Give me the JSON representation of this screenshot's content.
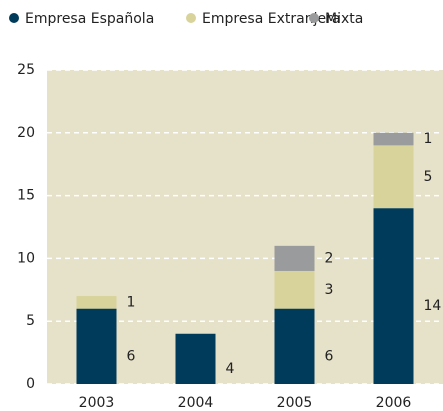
{
  "chart_data": {
    "type": "bar",
    "stacked": true,
    "categories": [
      "2003",
      "2004",
      "2005",
      "2006"
    ],
    "series": [
      {
        "name": "Empresa Española",
        "color": "#003b5c",
        "values": [
          6,
          4,
          6,
          14
        ]
      },
      {
        "name": "Empresa Extranjera",
        "color": "#d8d39a",
        "values": [
          1,
          null,
          3,
          5
        ]
      },
      {
        "name": "Mixta",
        "color": "#9a9b9d",
        "values": [
          null,
          null,
          2,
          1
        ]
      }
    ],
    "ylim": [
      0,
      25
    ],
    "yticks": [
      0,
      5,
      10,
      15,
      20,
      25
    ],
    "grid": true,
    "legend": "top"
  }
}
